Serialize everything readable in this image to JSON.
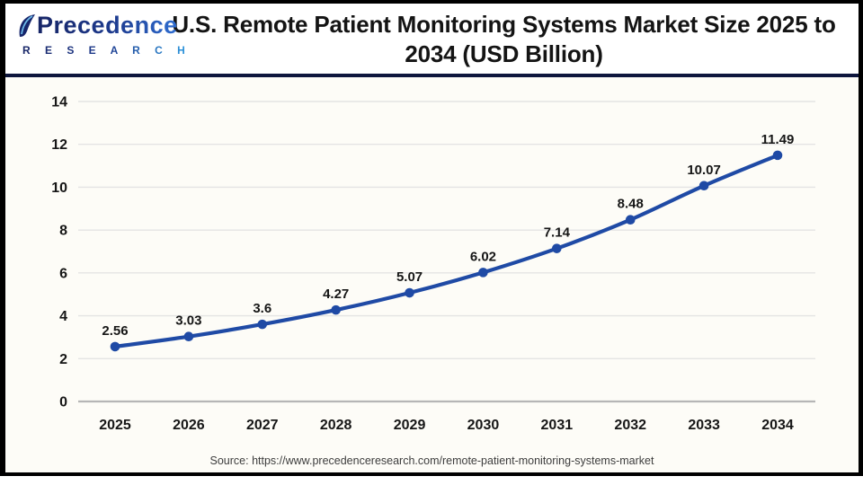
{
  "header": {
    "logo": {
      "brand": "Precedence",
      "sub_brand": "R E S E A R C H"
    },
    "title_lines": [
      "U.S. Remote Patient Monitoring Systems Market Size 2025 to",
      "2034 (USD Billion)"
    ]
  },
  "chart_data": {
    "type": "line",
    "title": "U.S. Remote Patient Monitoring Systems Market Size 2025 to 2034 (USD Billion)",
    "unit": "USD Billion",
    "categories": [
      "2025",
      "2026",
      "2027",
      "2028",
      "2029",
      "2030",
      "2031",
      "2032",
      "2033",
      "2034"
    ],
    "values": [
      2.56,
      3.03,
      3.6,
      4.27,
      5.07,
      6.02,
      7.14,
      8.48,
      10.07,
      11.49
    ],
    "ylim": [
      0,
      14
    ],
    "ytick_step": 2,
    "grid": true,
    "legend": "none",
    "data_labels": true,
    "line_color": "#1F4AA5",
    "marker_color": "#1F4AA5"
  },
  "footer": {
    "source": "Source: https://www.precedenceresearch.com/remote-patient-monitoring-systems-market"
  },
  "colors": {
    "frame_border": "#000000",
    "divider_navy": "#0E163D",
    "grid_line": "#E4E4E4",
    "axis_zero_line": "#B6B6B6",
    "title_text": "#141414",
    "source_text": "#3D3D3D",
    "logo_navy": "#172566",
    "logo_blue": "#2F6ED2",
    "chart_background": "#FDFCF7"
  }
}
